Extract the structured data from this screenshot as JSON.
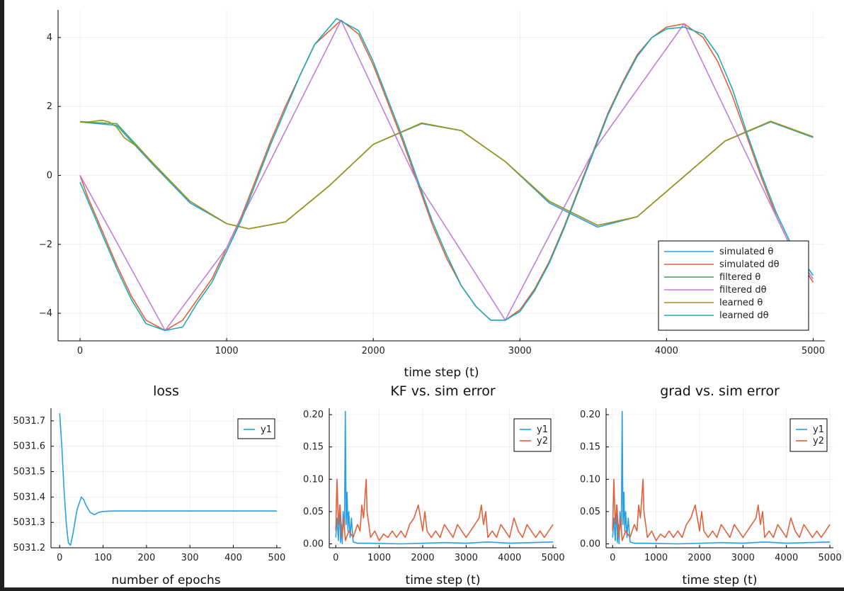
{
  "chart_data": [
    {
      "id": "main",
      "type": "line",
      "title": "",
      "xlabel": "time step (t)",
      "ylabel": "",
      "xlim": [
        -150,
        5080
      ],
      "ylim": [
        -4.8,
        4.8
      ],
      "xticks": [
        0,
        1000,
        2000,
        3000,
        4000,
        5000
      ],
      "yticks": [
        -4,
        -2,
        0,
        2,
        4
      ],
      "ytick_labels": [
        "−4",
        "−2",
        "0",
        "2",
        "4"
      ],
      "grid": true,
      "legend_position": "bottom-right",
      "series": [
        {
          "name": "simulated θ",
          "color": "#2aa0e2",
          "x": [
            0,
            250,
            500,
            750,
            1000,
            1150,
            1400,
            1700,
            2000,
            2330,
            2600,
            2900,
            3200,
            3530,
            3800,
            4100,
            4400,
            4710,
            5000
          ],
          "values": [
            1.55,
            1.45,
            0.3,
            -0.8,
            -1.4,
            -1.55,
            -1.35,
            -0.3,
            0.9,
            1.5,
            1.3,
            0.4,
            -0.8,
            -1.5,
            -1.2,
            -0.1,
            1.0,
            1.55,
            1.1
          ]
        },
        {
          "name": "simulated dθ",
          "color": "#e0613a",
          "x": [
            0,
            50,
            150,
            250,
            350,
            450,
            580,
            700,
            800,
            900,
            1000,
            1100,
            1200,
            1300,
            1400,
            1500,
            1600,
            1780,
            1900,
            2000,
            2100,
            2200,
            2300,
            2400,
            2500,
            2600,
            2700,
            2800,
            2900,
            3000,
            3100,
            3200,
            3300,
            3400,
            3500,
            3600,
            3700,
            3800,
            3900,
            4000,
            4120,
            4250,
            4350,
            4450,
            4550,
            4650,
            4750,
            4850,
            5000
          ],
          "values": [
            0.0,
            -0.6,
            -1.6,
            -2.6,
            -3.5,
            -4.2,
            -4.5,
            -4.2,
            -3.6,
            -3.0,
            -2.1,
            -1.2,
            -0.1,
            1.0,
            2.0,
            2.9,
            3.8,
            4.5,
            4.1,
            3.2,
            2.1,
            1.0,
            -0.2,
            -1.4,
            -2.4,
            -3.2,
            -3.8,
            -4.2,
            -4.2,
            -3.9,
            -3.3,
            -2.5,
            -1.5,
            -0.4,
            0.7,
            1.8,
            2.7,
            3.5,
            4.0,
            4.3,
            4.4,
            4.0,
            3.3,
            2.3,
            1.1,
            -0.1,
            -1.2,
            -2.1,
            -3.1
          ]
        },
        {
          "name": "filtered θ",
          "color": "#3aa83a",
          "x": [
            0,
            250,
            500,
            750,
            1000,
            1150,
            1400,
            1700,
            2000,
            2330,
            2600,
            2900,
            3200,
            3530,
            3800,
            4100,
            4400,
            4710,
            5000
          ],
          "values": [
            1.55,
            1.5,
            0.35,
            -0.75,
            -1.4,
            -1.55,
            -1.35,
            -0.3,
            0.9,
            1.52,
            1.3,
            0.4,
            -0.75,
            -1.45,
            -1.2,
            -0.1,
            1.0,
            1.57,
            1.12
          ]
        },
        {
          "name": "filtered dθ",
          "color": "#c27fd8",
          "x": [
            0,
            580,
            1000,
            1780,
            2300,
            2900,
            3500,
            4120,
            4850,
            5000
          ],
          "values": [
            0.0,
            -4.5,
            -2.1,
            4.5,
            -0.2,
            -4.2,
            0.7,
            4.4,
            -2.1,
            -3.0
          ]
        },
        {
          "name": "learned θ",
          "color": "#a0931e",
          "x": [
            0,
            50,
            100,
            150,
            200,
            250,
            300,
            350,
            400,
            500,
            750,
            1000,
            1150,
            1400,
            1700,
            2000,
            2330,
            2600,
            2900,
            3200,
            3530,
            3800,
            4100,
            4400,
            4710,
            5000
          ],
          "values": [
            1.56,
            1.55,
            1.57,
            1.6,
            1.55,
            1.4,
            1.1,
            0.95,
            0.8,
            0.33,
            -0.75,
            -1.4,
            -1.55,
            -1.35,
            -0.3,
            0.9,
            1.52,
            1.3,
            0.4,
            -0.75,
            -1.45,
            -1.2,
            -0.1,
            1.0,
            1.57,
            1.12
          ]
        },
        {
          "name": "learned dθ",
          "color": "#1eaab8",
          "x": [
            0,
            50,
            150,
            250,
            350,
            450,
            580,
            700,
            800,
            900,
            1000,
            1100,
            1200,
            1300,
            1400,
            1500,
            1600,
            1750,
            1900,
            2000,
            2100,
            2200,
            2300,
            2400,
            2500,
            2600,
            2700,
            2800,
            2900,
            3000,
            3100,
            3200,
            3300,
            3400,
            3500,
            3600,
            3700,
            3800,
            3900,
            4000,
            4120,
            4250,
            4350,
            4450,
            4550,
            4650,
            4750,
            4850,
            5000
          ],
          "values": [
            -0.2,
            -0.7,
            -1.7,
            -2.7,
            -3.6,
            -4.3,
            -4.5,
            -4.4,
            -3.7,
            -3.1,
            -2.2,
            -1.3,
            -0.2,
            0.9,
            1.9,
            2.9,
            3.8,
            4.55,
            4.2,
            3.3,
            2.2,
            1.1,
            -0.1,
            -1.3,
            -2.3,
            -3.2,
            -3.8,
            -4.2,
            -4.2,
            -3.95,
            -3.35,
            -2.55,
            -1.55,
            -0.45,
            0.65,
            1.75,
            2.65,
            3.45,
            4.0,
            4.25,
            4.3,
            4.1,
            3.5,
            2.5,
            1.2,
            0.0,
            -1.1,
            -2.0,
            -2.9
          ]
        }
      ]
    },
    {
      "id": "loss",
      "type": "line",
      "title": "loss",
      "xlabel": "number of epochs",
      "ylabel": "",
      "xlim": [
        -20,
        510
      ],
      "ylim": [
        5031.2,
        5031.75
      ],
      "xticks": [
        0,
        100,
        200,
        300,
        400,
        500
      ],
      "yticks": [
        5031.2,
        5031.3,
        5031.4,
        5031.5,
        5031.6,
        5031.7
      ],
      "ytick_labels": [
        "5031.2",
        "5031.3",
        "5031.4",
        "5031.5",
        "5031.6",
        "5031.7"
      ],
      "grid": true,
      "legend_position": "top-right",
      "series": [
        {
          "name": "y1",
          "color": "#2aa0e2",
          "x": [
            0,
            5,
            10,
            15,
            20,
            25,
            30,
            40,
            50,
            55,
            60,
            70,
            80,
            90,
            100,
            120,
            150,
            200,
            300,
            400,
            500
          ],
          "values": [
            5031.73,
            5031.6,
            5031.43,
            5031.3,
            5031.22,
            5031.21,
            5031.25,
            5031.35,
            5031.4,
            5031.39,
            5031.37,
            5031.34,
            5031.33,
            5031.34,
            5031.343,
            5031.345,
            5031.345,
            5031.345,
            5031.345,
            5031.345,
            5031.345
          ]
        }
      ]
    },
    {
      "id": "kf",
      "type": "line",
      "title": "KF vs. sim error",
      "xlabel": "time step (t)",
      "ylabel": "",
      "xlim": [
        -150,
        5080
      ],
      "ylim": [
        -0.006,
        0.21
      ],
      "xticks": [
        0,
        1000,
        2000,
        3000,
        4000,
        5000
      ],
      "yticks": [
        0.0,
        0.05,
        0.1,
        0.15,
        0.2
      ],
      "ytick_labels": [
        "0.00",
        "0.05",
        "0.10",
        "0.15",
        "0.20"
      ],
      "grid": true,
      "legend_position": "top-right",
      "series": [
        {
          "name": "y1",
          "color": "#2aa0e2",
          "x": [
            0,
            30,
            60,
            90,
            110,
            130,
            150,
            170,
            200,
            220,
            240,
            260,
            280,
            300,
            330,
            360,
            400,
            500,
            800,
            1500,
            2500,
            3000,
            3500,
            4000,
            4500,
            5000
          ],
          "values": [
            0.01,
            0.04,
            0.005,
            0.06,
            0.002,
            0.03,
            0.0,
            0.05,
            0.02,
            0.205,
            0.03,
            0.08,
            0.02,
            0.05,
            0.01,
            0.04,
            0.003,
            0.001,
            0.001,
            0.0,
            0.002,
            0.001,
            0.003,
            0.001,
            0.002,
            0.003
          ]
        },
        {
          "name": "y2",
          "color": "#e0613a",
          "x": [
            0,
            30,
            60,
            100,
            140,
            180,
            220,
            300,
            400,
            500,
            560,
            600,
            640,
            680,
            700,
            720,
            760,
            800,
            900,
            1000,
            1100,
            1200,
            1300,
            1400,
            1500,
            1600,
            1700,
            1800,
            1900,
            1950,
            2000,
            2050,
            2100,
            2200,
            2300,
            2400,
            2500,
            2600,
            2700,
            2800,
            2900,
            3000,
            3100,
            3200,
            3300,
            3350,
            3400,
            3450,
            3500,
            3600,
            3700,
            3800,
            3900,
            4000,
            4100,
            4200,
            4300,
            4400,
            4500,
            4600,
            4700,
            4800,
            4900,
            5000
          ],
          "values": [
            0.02,
            0.1,
            0.03,
            0.06,
            0.01,
            0.04,
            0.005,
            0.02,
            0.01,
            0.03,
            0.02,
            0.06,
            0.04,
            0.08,
            0.1,
            0.05,
            0.03,
            0.01,
            0.02,
            0.005,
            0.015,
            0.01,
            0.02,
            0.01,
            0.02,
            0.01,
            0.03,
            0.04,
            0.06,
            0.04,
            0.02,
            0.05,
            0.02,
            0.01,
            0.02,
            0.01,
            0.03,
            0.02,
            0.01,
            0.03,
            0.02,
            0.01,
            0.02,
            0.03,
            0.04,
            0.06,
            0.03,
            0.05,
            0.01,
            0.02,
            0.01,
            0.03,
            0.02,
            0.01,
            0.04,
            0.02,
            0.01,
            0.03,
            0.02,
            0.01,
            0.02,
            0.01,
            0.02,
            0.03
          ]
        }
      ]
    },
    {
      "id": "grad",
      "type": "line",
      "title": "grad vs. sim error",
      "xlabel": "time step (t)",
      "ylabel": "",
      "xlim": [
        -150,
        5080
      ],
      "ylim": [
        -0.006,
        0.21
      ],
      "xticks": [
        0,
        1000,
        2000,
        3000,
        4000,
        5000
      ],
      "yticks": [
        0.0,
        0.05,
        0.1,
        0.15,
        0.2
      ],
      "ytick_labels": [
        "0.00",
        "0.05",
        "0.10",
        "0.15",
        "0.20"
      ],
      "grid": true,
      "legend_position": "top-right",
      "series": [
        {
          "name": "y1",
          "color": "#2aa0e2",
          "x": [
            0,
            30,
            60,
            90,
            110,
            130,
            150,
            170,
            200,
            220,
            240,
            260,
            280,
            300,
            330,
            360,
            400,
            500,
            800,
            1500,
            2500,
            3000,
            3500,
            4000,
            4500,
            5000
          ],
          "values": [
            0.01,
            0.04,
            0.005,
            0.06,
            0.002,
            0.03,
            0.0,
            0.05,
            0.02,
            0.205,
            0.03,
            0.08,
            0.02,
            0.05,
            0.01,
            0.04,
            0.003,
            0.001,
            0.001,
            0.0,
            0.002,
            0.001,
            0.003,
            0.001,
            0.002,
            0.003
          ]
        },
        {
          "name": "y2",
          "color": "#e0613a",
          "x": [
            0,
            30,
            60,
            100,
            140,
            180,
            220,
            300,
            400,
            500,
            560,
            600,
            640,
            680,
            700,
            720,
            760,
            800,
            900,
            1000,
            1100,
            1200,
            1300,
            1400,
            1500,
            1600,
            1700,
            1800,
            1900,
            1950,
            2000,
            2050,
            2100,
            2200,
            2300,
            2400,
            2500,
            2600,
            2700,
            2800,
            2900,
            3000,
            3100,
            3200,
            3300,
            3350,
            3400,
            3450,
            3500,
            3600,
            3700,
            3800,
            3900,
            4000,
            4100,
            4200,
            4300,
            4400,
            4500,
            4600,
            4700,
            4800,
            4900,
            5000
          ],
          "values": [
            0.02,
            0.1,
            0.03,
            0.06,
            0.01,
            0.04,
            0.005,
            0.02,
            0.01,
            0.03,
            0.02,
            0.06,
            0.04,
            0.08,
            0.1,
            0.05,
            0.03,
            0.01,
            0.02,
            0.005,
            0.015,
            0.01,
            0.02,
            0.01,
            0.02,
            0.01,
            0.03,
            0.04,
            0.06,
            0.04,
            0.02,
            0.05,
            0.02,
            0.01,
            0.02,
            0.01,
            0.03,
            0.02,
            0.01,
            0.03,
            0.02,
            0.01,
            0.02,
            0.03,
            0.04,
            0.06,
            0.03,
            0.05,
            0.01,
            0.02,
            0.01,
            0.03,
            0.02,
            0.01,
            0.04,
            0.02,
            0.01,
            0.03,
            0.02,
            0.01,
            0.02,
            0.01,
            0.02,
            0.03
          ]
        }
      ]
    }
  ]
}
